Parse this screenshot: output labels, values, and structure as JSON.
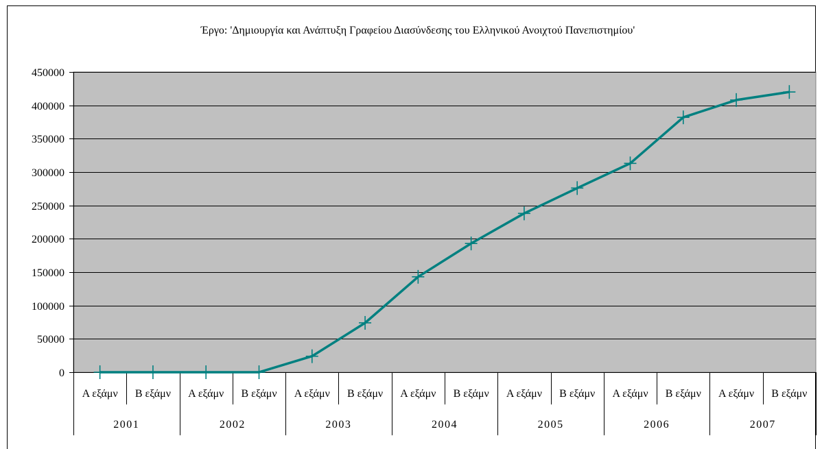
{
  "chart_data": {
    "type": "line",
    "title": "Έργο: 'Δημιουργία και Ανάπτυξη Γραφείου Διασύνδεσης του Ελληνικού Ανοιχτού Πανεπιστημίου'",
    "xlabel": "",
    "ylabel": "",
    "ylim": [
      0,
      450000
    ],
    "yticks": [
      "0",
      "50000",
      "100000",
      "150000",
      "200000",
      "250000",
      "300000",
      "350000",
      "400000",
      "450000"
    ],
    "grid": true,
    "legend": "none",
    "colors": {
      "plot_background": "#c0c0c0",
      "series_line": "#008080",
      "grid_line": "#000000"
    },
    "categories": [
      {
        "group": "2001",
        "label": "Α εξάμν"
      },
      {
        "group": "2001",
        "label": "Β εξάμν"
      },
      {
        "group": "2002",
        "label": "Α εξάμν"
      },
      {
        "group": "2002",
        "label": "Β εξάμν"
      },
      {
        "group": "2003",
        "label": "Α εξάμν"
      },
      {
        "group": "2003",
        "label": "Β εξάμν"
      },
      {
        "group": "2004",
        "label": "Α εξάμν"
      },
      {
        "group": "2004",
        "label": "Β εξάμν"
      },
      {
        "group": "2005",
        "label": "Α εξάμν"
      },
      {
        "group": "2005",
        "label": "Β εξάμν"
      },
      {
        "group": "2006",
        "label": "Α εξάμν"
      },
      {
        "group": "2006",
        "label": "Β εξάμν"
      },
      {
        "group": "2007",
        "label": "Α εξάμν"
      },
      {
        "group": "2007",
        "label": "Β εξάμν"
      }
    ],
    "groups": [
      "2001",
      "2002",
      "2003",
      "2004",
      "2005",
      "2006",
      "2007"
    ],
    "series": [
      {
        "values": [
          0,
          0,
          0,
          0,
          24000,
          74000,
          143000,
          193000,
          238000,
          276000,
          313000,
          382000,
          408000,
          420000
        ]
      }
    ]
  }
}
